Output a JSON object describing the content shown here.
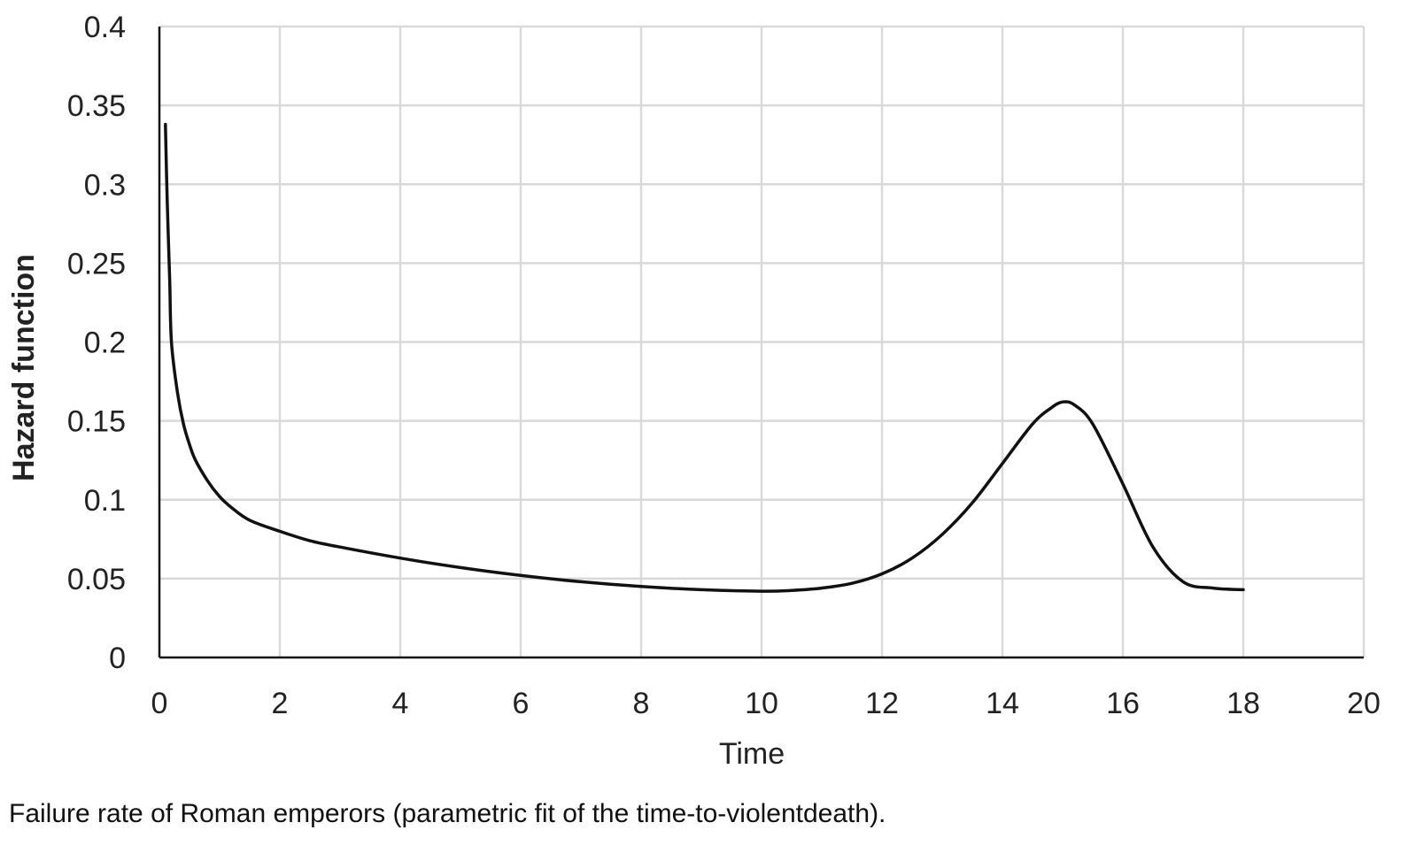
{
  "caption": "Failure rate of Roman emperors (parametric fit of the time-to-violentdeath).",
  "chart_data": {
    "type": "line",
    "title": "",
    "xlabel": "Time",
    "ylabel": "Hazard function",
    "xlim": [
      0,
      20
    ],
    "ylim": [
      0,
      0.4
    ],
    "x_ticks": [
      "0",
      "2",
      "4",
      "6",
      "8",
      "10",
      "12",
      "14",
      "16",
      "18",
      "20"
    ],
    "y_ticks": [
      "0",
      "0.05",
      "0.1",
      "0.15",
      "0.2",
      "0.25",
      "0.3",
      "0.35",
      "0.4"
    ],
    "grid": true,
    "legend": "none",
    "series": [
      {
        "color": "#111111",
        "x": [
          0.1,
          0.13,
          0.17,
          0.2,
          0.3,
          0.4,
          0.5,
          0.6,
          0.8,
          1.0,
          1.2,
          1.5,
          2,
          2.5,
          3,
          4,
          5,
          6,
          7,
          8,
          9,
          10,
          10.5,
          11,
          11.5,
          12,
          12.5,
          13,
          13.5,
          14,
          14.5,
          14.8,
          15,
          15.2,
          15.5,
          16,
          16.5,
          17,
          17.5,
          18
        ],
        "y": [
          0.338,
          0.29,
          0.24,
          0.2,
          0.168,
          0.148,
          0.135,
          0.125,
          0.112,
          0.102,
          0.095,
          0.087,
          0.08,
          0.074,
          0.07,
          0.063,
          0.057,
          0.052,
          0.048,
          0.045,
          0.043,
          0.042,
          0.0425,
          0.044,
          0.047,
          0.053,
          0.063,
          0.078,
          0.098,
          0.123,
          0.148,
          0.158,
          0.162,
          0.16,
          0.148,
          0.11,
          0.07,
          0.048,
          0.044,
          0.043
        ]
      }
    ]
  }
}
